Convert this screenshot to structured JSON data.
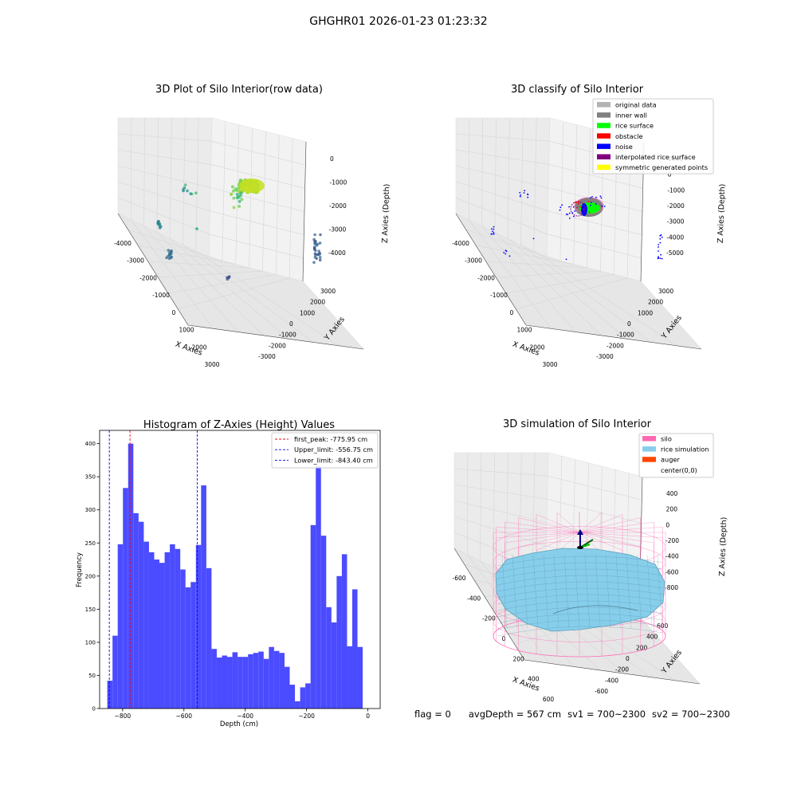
{
  "suptitle": "GHGHR01 2026-01-23 01:23:32",
  "footer": {
    "flag": "flag = 0",
    "avg_depth": "avgDepth = 567 cm",
    "sv1": "sv1 = 700~2300",
    "sv2": "sv2 = 700~2300"
  },
  "colors": {
    "pane": "#f2f2f2",
    "grid": "#d6d6d6",
    "hist_bar": "#4b4bff",
    "peak_line": "#ff0000",
    "limit_line": "#0000ff",
    "silo": "#ff69b4",
    "rice": "#87ceeb",
    "auger": "#ff4500"
  },
  "chart_data": [
    {
      "type": "scatter",
      "panel": "raw",
      "title": "3D Plot of Silo Interior(row data)",
      "xlabel": "X Axies",
      "ylabel": "Y Axies",
      "zlabel": "Z Axies (Depth)",
      "x_ticks": [
        "-4000",
        "-3000",
        "-2000",
        "-1000",
        "0",
        "1000",
        "2000",
        "3000"
      ],
      "y_ticks": [
        "-3000",
        "-2000",
        "-1000",
        "0",
        "1000",
        "2000",
        "3000"
      ],
      "z_ticks": [
        "0",
        "-1000",
        "-2000",
        "-3000",
        "-4000"
      ],
      "colormap": "viridis"
    },
    {
      "type": "scatter",
      "panel": "classified",
      "title": "3D classify of Silo Interior",
      "xlabel": "X Axies",
      "ylabel": "Y Axies",
      "zlabel": "Z Axies (Depth)",
      "x_ticks": [
        "-4000",
        "-3000",
        "-2000",
        "-1000",
        "0",
        "1000",
        "2000",
        "3000"
      ],
      "y_ticks": [
        "-3000",
        "-2000",
        "-1000",
        "0",
        "1000",
        "2000",
        "3000"
      ],
      "z_ticks": [
        "1000",
        "0",
        "-1000",
        "-2000",
        "-3000",
        "-4000",
        "-5000"
      ],
      "legend": [
        {
          "label": "original data",
          "color": "#b3b3b3"
        },
        {
          "label": "inner wall",
          "color": "#808080"
        },
        {
          "label": "rice surface",
          "color": "#00ff00"
        },
        {
          "label": "obstacle",
          "color": "#ff0000"
        },
        {
          "label": "noise",
          "color": "#0000ff"
        },
        {
          "label": "interpolated rice surface",
          "color": "#800080"
        },
        {
          "label": "symmetric generated points",
          "color": "#ffff00"
        }
      ]
    },
    {
      "type": "bar",
      "panel": "histogram",
      "title": "Histogram of Z-Axies (Height) Values",
      "xlabel": "Depth (cm)",
      "ylabel": "Frequency",
      "xlim": [
        -875,
        40
      ],
      "ylim": [
        0,
        420
      ],
      "x_ticks": [
        -800,
        -600,
        -400,
        -200,
        0
      ],
      "y_ticks": [
        0,
        50,
        100,
        150,
        200,
        250,
        300,
        350,
        400
      ],
      "bin_start": -850,
      "bin_width": 17,
      "values": [
        42,
        110,
        248,
        333,
        400,
        295,
        282,
        252,
        236,
        225,
        220,
        236,
        248,
        241,
        210,
        183,
        191,
        247,
        337,
        212,
        90,
        77,
        80,
        78,
        85,
        78,
        78,
        82,
        84,
        86,
        75,
        93,
        87,
        84,
        63,
        36,
        11,
        32,
        38,
        277,
        366,
        261,
        153,
        130,
        200,
        233,
        94,
        180,
        93
      ],
      "vlines": [
        {
          "label": "first_peak: -775.95 cm",
          "x": -775.95,
          "color": "#ff0000"
        },
        {
          "label": "Upper_limit: -556.75 cm",
          "x": -556.75,
          "color": "#0000ff"
        },
        {
          "label": "Lower_limit: -843.40 cm",
          "x": -843.4,
          "color": "#0000ff"
        }
      ]
    },
    {
      "type": "surface",
      "panel": "simulation",
      "title": "3D simulation of Silo Interior",
      "xlabel": "X Axies",
      "ylabel": "Y Axies",
      "zlabel": "Z Axies (Depth)",
      "x_ticks": [
        "-600",
        "-400",
        "-200",
        "0",
        "200",
        "400",
        "600"
      ],
      "y_ticks": [
        "-600",
        "-400",
        "-200",
        "0",
        "200",
        "400",
        "600"
      ],
      "z_ticks": [
        "400",
        "200",
        "0",
        "-200",
        "-400",
        "-600",
        "-800"
      ],
      "legend": [
        {
          "label": "silo",
          "color": "#ff69b4"
        },
        {
          "label": "rice simulation",
          "color": "#87ceeb"
        },
        {
          "label": "auger",
          "color": "#ff4500"
        },
        {
          "label": "center(0,0)",
          "color": "#ffffff"
        }
      ]
    }
  ]
}
